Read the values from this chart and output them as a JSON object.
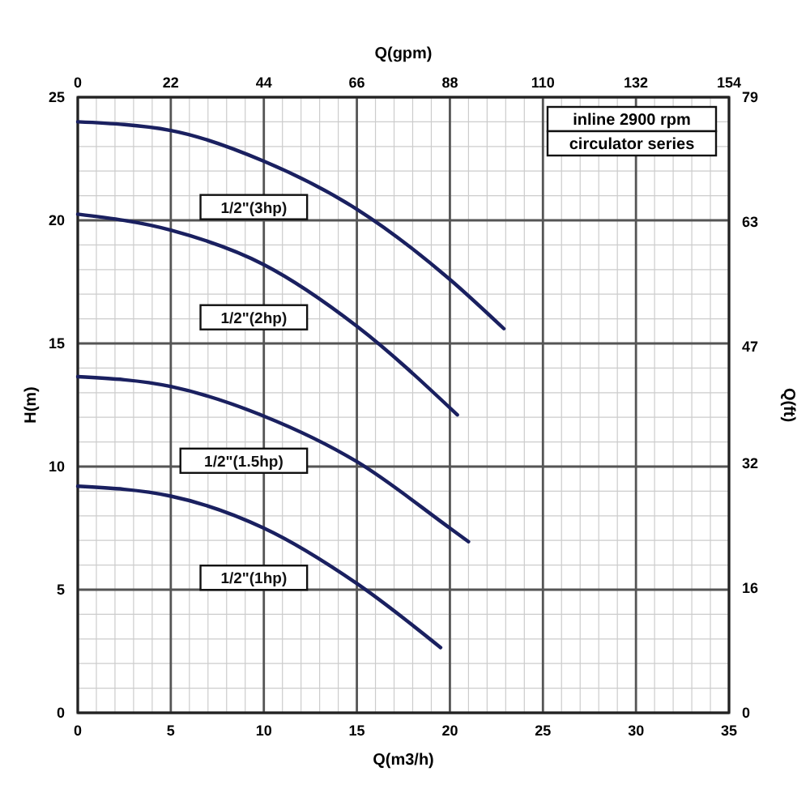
{
  "chart_data": {
    "type": "line",
    "xlabel": "Q(m3/h)",
    "x2label": "Q(gpm)",
    "ylabel": "H(m)",
    "y2label": "Q(ft)",
    "xlim": [
      0,
      35
    ],
    "xticks": [
      0,
      5,
      10,
      15,
      20,
      25,
      30,
      35
    ],
    "x2lim": [
      0,
      154
    ],
    "x2ticks": [
      0,
      22,
      44,
      66,
      88,
      110,
      132,
      154
    ],
    "ylim": [
      0,
      25
    ],
    "yticks": [
      0,
      5,
      10,
      15,
      20,
      25
    ],
    "y2lim": [
      0,
      79
    ],
    "y2ticks": [
      0,
      16,
      32,
      47,
      63,
      79
    ],
    "grid": true,
    "marker": "none",
    "line_style": "solid",
    "annotations": [
      "inline 2900 rpm",
      "circulator series"
    ],
    "series": [
      {
        "name": "1/2\"(3hp)",
        "color": "#1a2060",
        "x": [
          0,
          5,
          10,
          15,
          20,
          22.9
        ],
        "values": [
          24,
          23.65,
          22.4,
          20.45,
          17.6,
          15.6
        ]
      },
      {
        "name": "1/2\"(2hp)",
        "color": "#1a2060",
        "x": [
          0,
          5,
          10,
          15,
          20.4
        ],
        "values": [
          20.25,
          19.6,
          18.2,
          15.7,
          12.1
        ]
      },
      {
        "name": "1/2\"(1.5hp)",
        "color": "#1a2060",
        "x": [
          0,
          5,
          10,
          15,
          20,
          21
        ],
        "values": [
          13.65,
          13.25,
          12.05,
          10.2,
          7.5,
          6.95
        ]
      },
      {
        "name": "1/2\"(1hp)",
        "color": "#1a2060",
        "x": [
          0,
          5,
          10,
          15,
          19.5
        ],
        "values": [
          9.2,
          8.8,
          7.5,
          5.25,
          2.65
        ]
      }
    ]
  }
}
